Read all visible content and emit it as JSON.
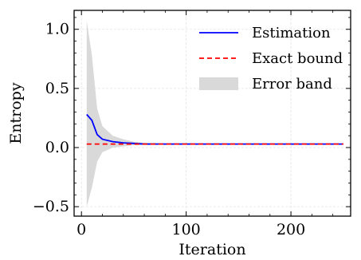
{
  "chart_data": {
    "type": "line",
    "xlabel": "Iteration",
    "ylabel": "Entropy",
    "xlim": [
      -7,
      257
    ],
    "ylim": [
      -0.58,
      1.16
    ],
    "xticks": [
      0,
      100,
      200
    ],
    "xtick_labels": [
      "0",
      "100",
      "200"
    ],
    "yticks": [
      -0.5,
      0.0,
      0.5,
      1.0
    ],
    "ytick_labels": [
      "−0.5",
      "0.0",
      "0.5",
      "1.0"
    ],
    "grid": true,
    "legend_position": "top-right",
    "series": [
      {
        "name": "Estimation",
        "kind": "line",
        "color": "#0000ff",
        "style": "solid",
        "x": [
          5,
          10,
          15,
          20,
          30,
          40,
          50,
          60,
          70,
          80,
          100,
          150,
          200,
          250
        ],
        "y": [
          0.28,
          0.23,
          0.11,
          0.07,
          0.05,
          0.04,
          0.035,
          0.03,
          0.03,
          0.03,
          0.03,
          0.03,
          0.03,
          0.03
        ]
      },
      {
        "name": "Exact bound",
        "kind": "line",
        "color": "#ff0000",
        "style": "dashed",
        "x": [
          5,
          250
        ],
        "y": [
          0.03,
          0.03
        ]
      },
      {
        "name": "Error band",
        "kind": "band",
        "color": "#d9d9d9",
        "x": [
          5,
          10,
          15,
          20,
          30,
          40,
          50,
          60,
          70,
          80,
          100,
          150,
          200,
          250
        ],
        "y_upper": [
          1.07,
          0.78,
          0.33,
          0.18,
          0.1,
          0.07,
          0.05,
          0.04,
          0.038,
          0.036,
          0.035,
          0.034,
          0.033,
          0.033
        ],
        "y_lower": [
          -0.5,
          -0.34,
          -0.12,
          -0.04,
          0.0,
          0.01,
          0.02,
          0.022,
          0.023,
          0.024,
          0.025,
          0.026,
          0.027,
          0.027
        ]
      }
    ]
  }
}
